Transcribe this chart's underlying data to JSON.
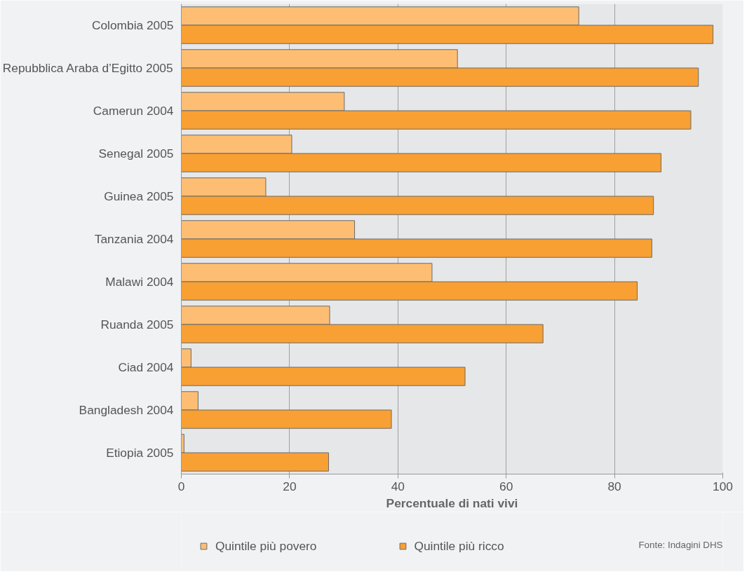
{
  "chart_data": {
    "type": "bar",
    "orientation": "horizontal",
    "xlabel": "Percentuale di nati vivi",
    "categories": [
      "Colombia 2005",
      "Repubblica Araba d’Egitto 2005",
      "Camerun 2004",
      "Senegal 2005",
      "Guinea 2005",
      "Tanzania 2004",
      "Malawi 2004",
      "Ruanda 2005",
      "Ciad 2004",
      "Bangladesh 2004",
      "Etiopia 2005"
    ],
    "series": [
      {
        "name": "Quintile più povero",
        "color": "#fdbe74",
        "values": [
          73.4,
          51.0,
          30.1,
          20.4,
          15.6,
          32.0,
          46.3,
          27.4,
          1.8,
          3.1,
          0.5
        ]
      },
      {
        "name": "Quintile più ricco",
        "color": "#f8a033",
        "values": [
          98.2,
          95.5,
          94.1,
          88.6,
          87.2,
          86.9,
          84.2,
          66.8,
          52.4,
          38.8,
          27.2
        ]
      }
    ],
    "xlim": [
      0,
      100
    ],
    "xticks": [
      0,
      20,
      40,
      60,
      80,
      100
    ],
    "grid": "x",
    "legend": "bottom",
    "annotations": [
      "Fonte: Indagini DHS"
    ]
  }
}
